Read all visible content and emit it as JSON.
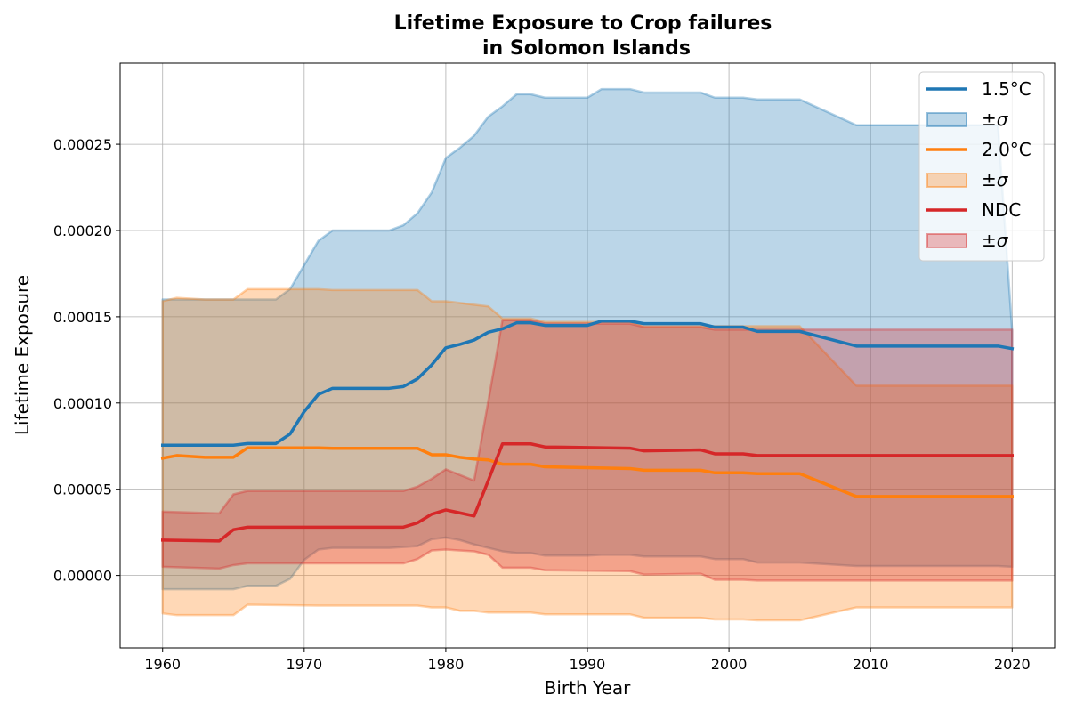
{
  "chart_data": {
    "type": "area",
    "title_line1": "Lifetime Exposure to Crop failures",
    "title_line2": "in Solomon Islands",
    "xlabel": "Birth Year",
    "ylabel": "Lifetime Exposure",
    "xlim": [
      1957,
      2023
    ],
    "ylim": [
      -4.2e-05,
      0.000297
    ],
    "x_ticks": [
      1960,
      1970,
      1980,
      1990,
      2000,
      2010,
      2020
    ],
    "y_ticks": [
      0.0,
      5e-05,
      0.0001,
      0.00015,
      0.0002,
      0.00025
    ],
    "y_tick_labels": [
      "0.00000",
      "0.00005",
      "0.00010",
      "0.00015",
      "0.00020",
      "0.00025"
    ],
    "grid": true,
    "legend_position": "top-right",
    "series": [
      {
        "name": "1.5°C",
        "band_name": "±σ",
        "color": "#1f77b4",
        "x": [
          1960,
          1965,
          1966,
          1968,
          1969,
          1970,
          1971,
          1972,
          1976,
          1977,
          1978,
          1979,
          1980,
          1981,
          1982,
          1983,
          1984,
          1985,
          1986,
          1987,
          1990,
          1991,
          1993,
          1994,
          1998,
          1999,
          2001,
          2002,
          2005,
          2009,
          2019,
          2020
        ],
        "mean": [
          7.55e-05,
          7.55e-05,
          7.65e-05,
          7.65e-05,
          8.2e-05,
          9.5e-05,
          0.000105,
          0.0001085,
          0.0001085,
          0.0001095,
          0.000114,
          0.000122,
          0.000132,
          0.000134,
          0.0001365,
          0.000141,
          0.000143,
          0.0001465,
          0.0001465,
          0.000145,
          0.000145,
          0.0001475,
          0.0001475,
          0.000146,
          0.000146,
          0.000144,
          0.000144,
          0.0001415,
          0.0001415,
          0.000133,
          0.000133,
          0.0001315
        ],
        "upper": [
          0.00016,
          0.00016,
          0.00016,
          0.00016,
          0.000166,
          0.00018,
          0.000194,
          0.0002,
          0.0002,
          0.000203,
          0.00021,
          0.000222,
          0.000242,
          0.000248,
          0.000255,
          0.000266,
          0.000272,
          0.000279,
          0.000279,
          0.000277,
          0.000277,
          0.000282,
          0.000282,
          0.00028,
          0.00028,
          0.000277,
          0.000277,
          0.000276,
          0.000276,
          0.000261,
          0.000261,
          0.000142
        ],
        "lower": [
          -8e-06,
          -8e-06,
          -6e-06,
          -6e-06,
          -2e-06,
          9e-06,
          1.5e-05,
          1.6e-05,
          1.6e-05,
          1.65e-05,
          1.7e-05,
          2.1e-05,
          2.2e-05,
          2.05e-05,
          1.8e-05,
          1.6e-05,
          1.4e-05,
          1.3e-05,
          1.3e-05,
          1.15e-05,
          1.15e-05,
          1.2e-05,
          1.2e-05,
          1.1e-05,
          1.1e-05,
          9.5e-06,
          9.5e-06,
          7.5e-06,
          7.5e-06,
          5.5e-06,
          5.5e-06,
          5e-06
        ]
      },
      {
        "name": "2.0°C",
        "band_name": "±σ",
        "color": "#ff7f0e",
        "x": [
          1960,
          1961,
          1963,
          1965,
          1966,
          1971,
          1972,
          1978,
          1979,
          1980,
          1981,
          1982,
          1983,
          1984,
          1986,
          1987,
          1993,
          1994,
          1998,
          1999,
          2001,
          2002,
          2005,
          2009,
          2020
        ],
        "mean": [
          6.8e-05,
          6.95e-05,
          6.85e-05,
          6.85e-05,
          7.4e-05,
          7.4e-05,
          7.37e-05,
          7.37e-05,
          7e-05,
          7e-05,
          6.85e-05,
          6.75e-05,
          6.7e-05,
          6.45e-05,
          6.45e-05,
          6.3e-05,
          6.2e-05,
          6.1e-05,
          6.1e-05,
          5.95e-05,
          5.95e-05,
          5.9e-05,
          5.9e-05,
          4.58e-05,
          4.58e-05
        ],
        "upper": [
          0.000159,
          0.000161,
          0.00016,
          0.00016,
          0.000166,
          0.000166,
          0.0001655,
          0.0001655,
          0.000159,
          0.000159,
          0.000158,
          0.000157,
          0.000156,
          0.000149,
          0.000149,
          0.000147,
          0.000147,
          0.0001445,
          0.0001445,
          0.0001445,
          0.0001445,
          0.0001445,
          0.0001445,
          0.00011,
          0.00011
        ],
        "lower": [
          -2.2e-05,
          -2.3e-05,
          -2.3e-05,
          -2.3e-05,
          -1.7e-05,
          -1.75e-05,
          -1.75e-05,
          -1.75e-05,
          -1.85e-05,
          -1.85e-05,
          -2.05e-05,
          -2.05e-05,
          -2.15e-05,
          -2.15e-05,
          -2.15e-05,
          -2.25e-05,
          -2.25e-05,
          -2.45e-05,
          -2.45e-05,
          -2.55e-05,
          -2.55e-05,
          -2.6e-05,
          -2.6e-05,
          -1.85e-05,
          -1.85e-05
        ]
      },
      {
        "name": "NDC",
        "band_name": "±σ",
        "color": "#d62728",
        "x": [
          1960,
          1964,
          1965,
          1966,
          1977,
          1978,
          1979,
          1980,
          1982,
          1983,
          1984,
          1986,
          1987,
          1993,
          1994,
          1998,
          1999,
          2001,
          2002,
          2005,
          2009,
          2020
        ],
        "mean": [
          2.05e-05,
          2e-05,
          2.65e-05,
          2.8e-05,
          2.8e-05,
          3.05e-05,
          3.55e-05,
          3.8e-05,
          3.45e-05,
          5.5e-05,
          7.63e-05,
          7.63e-05,
          7.45e-05,
          7.38e-05,
          7.22e-05,
          7.28e-05,
          7.05e-05,
          7.05e-05,
          6.95e-05,
          6.95e-05,
          6.95e-05,
          6.95e-05
        ],
        "upper": [
          3.7e-05,
          3.6e-05,
          4.7e-05,
          4.9e-05,
          4.9e-05,
          5.15e-05,
          5.6e-05,
          6.15e-05,
          5.5e-05,
          0.000101,
          0.000148,
          0.000148,
          0.000146,
          0.000146,
          0.000144,
          0.000144,
          0.0001425,
          0.0001425,
          0.0001425,
          0.0001425,
          0.0001425,
          0.0001425
        ],
        "lower": [
          5e-06,
          4e-06,
          6e-06,
          7e-06,
          7e-06,
          9.5e-06,
          1.45e-05,
          1.5e-05,
          1.4e-05,
          1.2e-05,
          4.5e-06,
          4.5e-06,
          3e-06,
          2.5e-06,
          5e-07,
          1e-06,
          -2.5e-06,
          -2.5e-06,
          -3e-06,
          -3e-06,
          -3e-06,
          -3e-06
        ]
      }
    ]
  }
}
